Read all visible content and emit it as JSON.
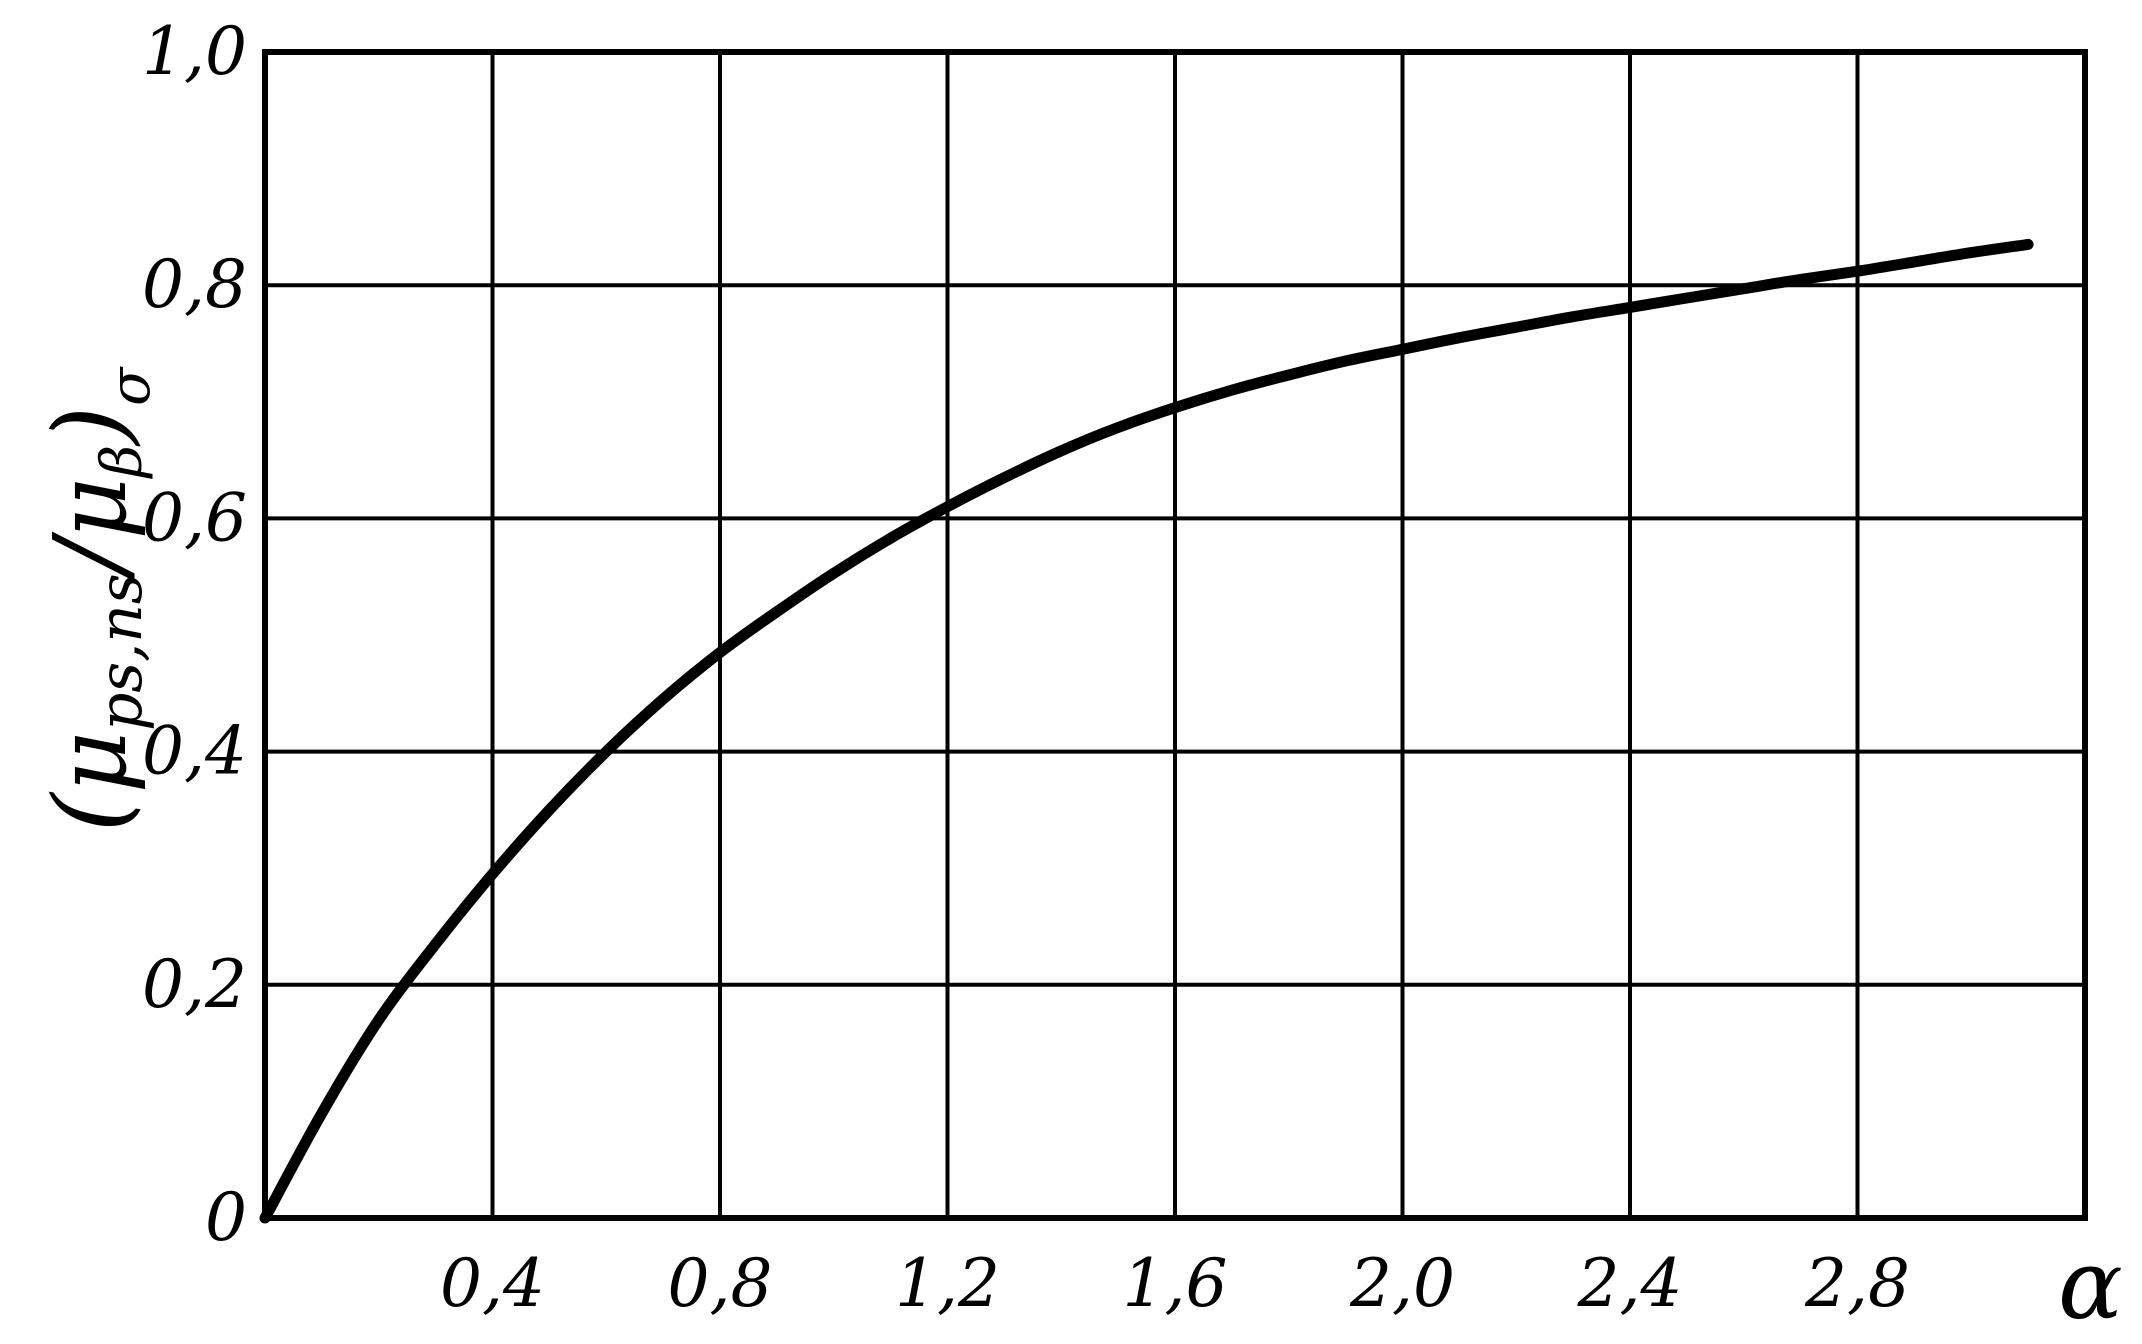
{
  "chart_data": {
    "type": "line",
    "title": "",
    "xlabel": "α",
    "ylabel": "(μps,ns/μβ)σ",
    "ylabel_parts": {
      "main": "μ",
      "main_sub": "ps,ns",
      "slash": "/",
      "den": "μ",
      "den_sub": "β",
      "open": "(",
      "close": ")",
      "outer_sub": "σ"
    },
    "xlim": [
      0,
      3.2
    ],
    "ylim": [
      0,
      1.0
    ],
    "grid": true,
    "legend": "none",
    "line_color": "#000000",
    "x_ticks": [
      {
        "value": 0.4,
        "label": "0,4"
      },
      {
        "value": 0.8,
        "label": "0,8"
      },
      {
        "value": 1.2,
        "label": "1,2"
      },
      {
        "value": 1.6,
        "label": "1,6"
      },
      {
        "value": 2.0,
        "label": "2,0"
      },
      {
        "value": 2.4,
        "label": "2,4"
      },
      {
        "value": 2.8,
        "label": "2,8"
      }
    ],
    "y_ticks": [
      {
        "value": 0,
        "label": "0"
      },
      {
        "value": 0.2,
        "label": "0,2"
      },
      {
        "value": 0.4,
        "label": "0,4"
      },
      {
        "value": 0.6,
        "label": "0,6"
      },
      {
        "value": 0.8,
        "label": "0,8"
      },
      {
        "value": 1.0,
        "label": "1,0"
      }
    ],
    "series": [
      {
        "x": [
          0,
          0.1,
          0.2,
          0.3,
          0.4,
          0.5,
          0.6,
          0.7,
          0.8,
          0.9,
          1.0,
          1.1,
          1.2,
          1.3,
          1.4,
          1.5,
          1.6,
          1.7,
          1.8,
          1.9,
          2.0,
          2.1,
          2.2,
          2.3,
          2.4,
          2.5,
          2.6,
          2.7,
          2.8,
          2.9,
          3.0,
          3.1
        ],
        "y": [
          0,
          0.09,
          0.17,
          0.235,
          0.295,
          0.35,
          0.4,
          0.445,
          0.485,
          0.52,
          0.553,
          0.583,
          0.61,
          0.635,
          0.658,
          0.678,
          0.695,
          0.71,
          0.723,
          0.735,
          0.745,
          0.755,
          0.764,
          0.773,
          0.781,
          0.789,
          0.797,
          0.805,
          0.812,
          0.82,
          0.828,
          0.835
        ]
      }
    ]
  }
}
